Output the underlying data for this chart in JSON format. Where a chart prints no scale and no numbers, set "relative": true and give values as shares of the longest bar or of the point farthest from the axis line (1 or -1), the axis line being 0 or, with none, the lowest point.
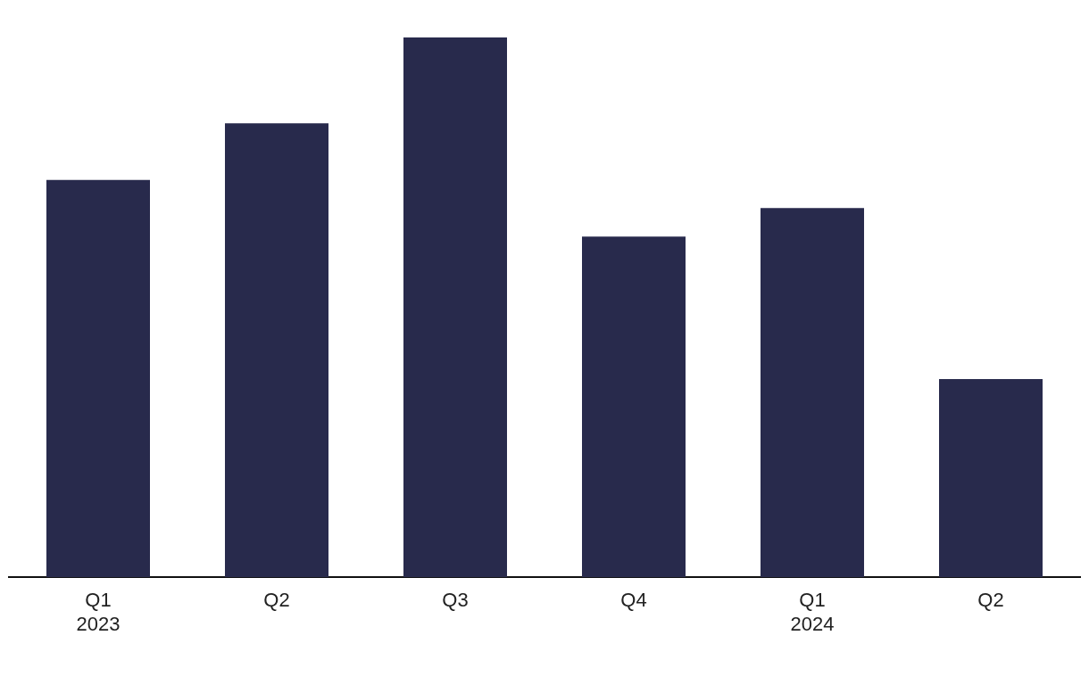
{
  "chart_data": {
    "type": "bar",
    "relative": true,
    "categories": [
      "Q1\n2023",
      "Q2",
      "Q3",
      "Q4",
      "Q1\n2024",
      "Q2"
    ],
    "values": [
      0.736,
      0.841,
      1,
      0.631,
      0.684,
      0.367
    ],
    "color": "#282a4c",
    "grid": false,
    "legend": false
  }
}
